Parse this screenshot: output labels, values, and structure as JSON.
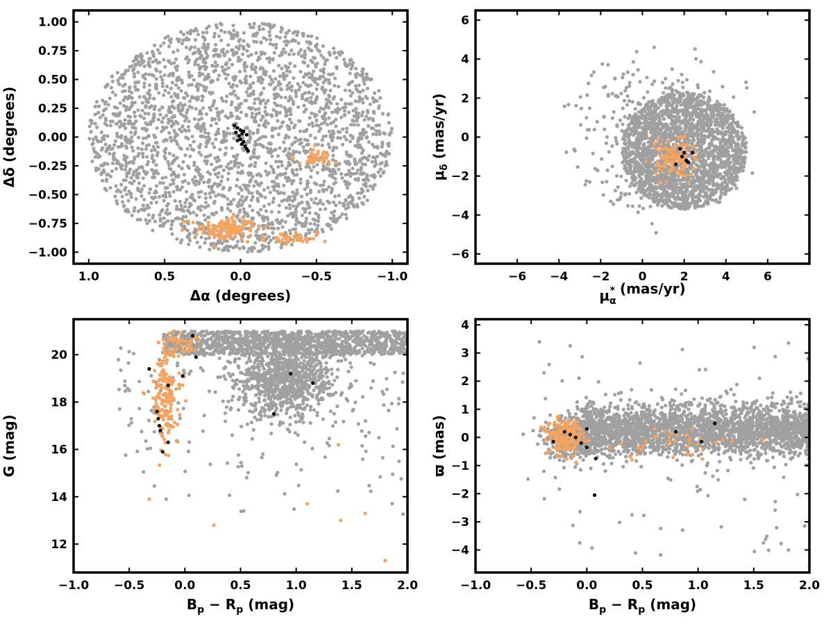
{
  "colors": {
    "field": "#a0a0a0",
    "members": "#f4a460",
    "core": "#000000"
  },
  "chart_data": [
    {
      "type": "scatter",
      "xlabel_main": "Δα",
      "xlabel_rest": " (degrees)",
      "ylabel_main": "Δδ",
      "ylabel_rest": " (degrees)",
      "xlim": [
        1.1,
        -1.1
      ],
      "ylim": [
        -1.1,
        1.1
      ],
      "xticks": [
        1.0,
        0.5,
        0.0,
        -0.5,
        -1.0
      ],
      "xtick_labels": [
        "1.0",
        "0.5",
        "0.0",
        "−0.5",
        "−1.0"
      ],
      "yticks": [
        1.0,
        0.75,
        0.5,
        0.25,
        0.0,
        -0.25,
        -0.5,
        -0.75,
        -1.0
      ],
      "ytick_labels": [
        "1.00",
        "0.75",
        "0.50",
        "0.25",
        "0.00",
        "−0.25",
        "−0.50",
        "−0.75",
        "−1.00"
      ],
      "series": [
        {
          "role": "field",
          "count": 2600,
          "pattern": "disk",
          "center": [
            0.0,
            0.0
          ],
          "radius": 1.0,
          "seed": 11
        },
        {
          "role": "members",
          "pattern": "clusters",
          "seed": 12,
          "clusters": [
            {
              "center": [
                0.1,
                -0.8
              ],
              "sd": [
                0.1,
                0.05
              ],
              "count": 130
            },
            {
              "center": [
                -0.35,
                -0.88
              ],
              "sd": [
                0.08,
                0.03
              ],
              "count": 35
            },
            {
              "center": [
                -0.5,
                -0.18
              ],
              "sd": [
                0.05,
                0.04
              ],
              "count": 40
            }
          ]
        },
        {
          "role": "core",
          "pattern": "points",
          "points": [
            [
              0.04,
              0.1
            ],
            [
              0.02,
              0.08
            ],
            [
              0.0,
              0.06
            ],
            [
              -0.02,
              0.05
            ],
            [
              0.03,
              0.04
            ],
            [
              -0.01,
              0.03
            ],
            [
              0.01,
              0.01
            ],
            [
              -0.04,
              0.02
            ],
            [
              0.0,
              -0.02
            ],
            [
              -0.02,
              -0.04
            ],
            [
              -0.01,
              -0.06
            ],
            [
              -0.03,
              -0.08
            ],
            [
              -0.04,
              -0.1
            ],
            [
              -0.05,
              -0.12
            ],
            [
              0.02,
              -0.03
            ]
          ]
        }
      ]
    },
    {
      "type": "scatter",
      "xlabel_main": "μ",
      "xlabel_sub": "α",
      "xlabel_sup": "*",
      "xlabel_rest": "  (mas/yr)",
      "ylabel_main": "μ",
      "ylabel_sub": "δ",
      "ylabel_rest": " (mas/yr)",
      "xlim": [
        -8,
        8
      ],
      "ylim": [
        -6.5,
        6.5
      ],
      "xticks": [
        -6,
        -4,
        -2,
        0,
        2,
        4,
        6
      ],
      "xtick_labels": [
        "−6",
        "−4",
        "−2",
        "0",
        "2",
        "4",
        "6"
      ],
      "yticks": [
        6,
        4,
        2,
        0,
        -2,
        -4,
        -6
      ],
      "ytick_labels": [
        "6",
        "4",
        "2",
        "0",
        "−2",
        "−4",
        "−6"
      ],
      "series": [
        {
          "role": "field",
          "pattern": "mixed",
          "seed": 21,
          "disk": {
            "count": 2100,
            "center": [
              2.0,
              -0.7
            ],
            "radius": 3.0
          },
          "cloud": {
            "count": 400,
            "center": [
              0.8,
              0.0
            ],
            "sd": [
              2.0,
              2.0
            ],
            "max_radius": 5.0
          }
        },
        {
          "role": "members",
          "pattern": "clusters",
          "seed": 22,
          "clusters": [
            {
              "center": [
                1.5,
                -1.1
              ],
              "sd": [
                0.45,
                0.45
              ],
              "count": 110
            }
          ]
        },
        {
          "role": "core",
          "pattern": "points",
          "points": [
            [
              1.8,
              -0.6
            ],
            [
              2.0,
              -0.8
            ],
            [
              1.6,
              -1.4
            ],
            [
              2.1,
              -1.2
            ],
            [
              2.4,
              -0.8
            ],
            [
              1.9,
              -1.0
            ],
            [
              2.2,
              -1.3
            ]
          ]
        }
      ]
    },
    {
      "type": "scatter",
      "xlabel_main": "B",
      "xlabel_sub": "p",
      "xlabel_mid": " − R",
      "xlabel_sub2": "p",
      "xlabel_rest": " (mag)",
      "ylabel_main": "G (mag)",
      "xlim": [
        -1.0,
        2.0
      ],
      "ylim": [
        10.8,
        21.5
      ],
      "xticks": [
        -1.0,
        -0.5,
        0.0,
        0.5,
        1.0,
        1.5,
        2.0
      ],
      "xtick_labels": [
        "−1.0",
        "−0.5",
        "0.0",
        "0.5",
        "1.0",
        "1.5",
        "2.0"
      ],
      "yticks": [
        20,
        18,
        16,
        14,
        12
      ],
      "ytick_labels": [
        "20",
        "18",
        "16",
        "14",
        "12"
      ],
      "series": [
        {
          "role": "field",
          "pattern": "cmd",
          "seed": 31,
          "top_band": {
            "count": 1100,
            "x": [
              -0.2,
              2.0
            ],
            "y": [
              20.0,
              21.0
            ]
          },
          "blob": {
            "count": 900,
            "center": [
              0.9,
              19.0
            ],
            "sd": [
              0.22,
              0.8
            ]
          },
          "sparse": {
            "count": 220,
            "x": [
              -0.6,
              2.0
            ],
            "y": [
              12.5,
              20.5
            ]
          }
        },
        {
          "role": "members",
          "pattern": "clusters",
          "seed": 32,
          "clusters": [
            {
              "center": [
                -0.18,
                18.4
              ],
              "sd": [
                0.07,
                1.1
              ],
              "count": 170
            },
            {
              "center": [
                -0.05,
                20.4
              ],
              "sd": [
                0.08,
                0.25
              ],
              "count": 40
            }
          ],
          "extra_points": [
            [
              1.8,
              11.3
            ],
            [
              1.62,
              13.3
            ],
            [
              1.4,
              13.0
            ],
            [
              1.1,
              13.7
            ],
            [
              0.26,
              12.8
            ],
            [
              -0.32,
              13.9
            ],
            [
              1.38,
              16.2
            ]
          ]
        },
        {
          "role": "core",
          "pattern": "points",
          "points": [
            [
              0.07,
              20.8
            ],
            [
              0.1,
              19.9
            ],
            [
              -0.32,
              19.4
            ],
            [
              -0.02,
              19.1
            ],
            [
              0.95,
              19.2
            ],
            [
              1.15,
              18.8
            ],
            [
              -0.15,
              18.7
            ],
            [
              -0.25,
              17.6
            ],
            [
              -0.24,
              17.3
            ],
            [
              -0.23,
              17.0
            ],
            [
              -0.22,
              16.8
            ],
            [
              -0.15,
              16.3
            ],
            [
              -0.2,
              15.9
            ],
            [
              0.8,
              17.5
            ]
          ]
        }
      ]
    },
    {
      "type": "scatter",
      "xlabel_main": "B",
      "xlabel_sub": "p",
      "xlabel_mid": " − R",
      "xlabel_sub2": "p",
      "xlabel_rest": " (mag)",
      "ylabel_main": "ϖ (mas)",
      "xlim": [
        -1.0,
        2.0
      ],
      "ylim": [
        -4.8,
        4.2
      ],
      "xticks": [
        -1.0,
        -0.5,
        0.0,
        0.5,
        1.0,
        1.5,
        2.0
      ],
      "xtick_labels": [
        "−1.0",
        "−0.5",
        "0.0",
        "0.5",
        "1.0",
        "1.5",
        "2.0"
      ],
      "yticks": [
        4,
        3,
        2,
        1,
        0,
        -1,
        -2,
        -3,
        -4
      ],
      "ytick_labels": [
        "4",
        "3",
        "2",
        "1",
        "0",
        "−1",
        "−2",
        "−3",
        "−4"
      ],
      "series": [
        {
          "role": "field",
          "pattern": "parallax",
          "seed": 41,
          "band": {
            "count": 2400,
            "x": [
              -0.1,
              2.0
            ],
            "y_center": 0.25,
            "sd": 0.45
          },
          "left": {
            "count": 300,
            "center": [
              -0.15,
              0.0
            ],
            "sd": [
              0.12,
              0.4
            ]
          },
          "sparse": {
            "count": 90,
            "x": [
              -0.6,
              2.0
            ],
            "y": [
              -4.4,
              3.8
            ]
          }
        },
        {
          "role": "members",
          "pattern": "clusters",
          "seed": 42,
          "clusters": [
            {
              "center": [
                -0.2,
                0.05
              ],
              "sd": [
                0.09,
                0.35
              ],
              "count": 160
            },
            {
              "center": [
                0.8,
                -0.2
              ],
              "sd": [
                0.3,
                0.35
              ],
              "count": 35
            }
          ]
        },
        {
          "role": "core",
          "pattern": "points",
          "points": [
            [
              -0.3,
              -0.15
            ],
            [
              -0.2,
              0.2
            ],
            [
              -0.15,
              0.1
            ],
            [
              0.0,
              0.3
            ],
            [
              -0.1,
              0.0
            ],
            [
              -0.05,
              -0.2
            ],
            [
              0.0,
              -0.35
            ],
            [
              0.08,
              -0.75
            ],
            [
              0.07,
              -2.05
            ],
            [
              0.8,
              0.2
            ],
            [
              1.03,
              -0.15
            ],
            [
              1.15,
              0.5
            ]
          ]
        }
      ]
    }
  ]
}
